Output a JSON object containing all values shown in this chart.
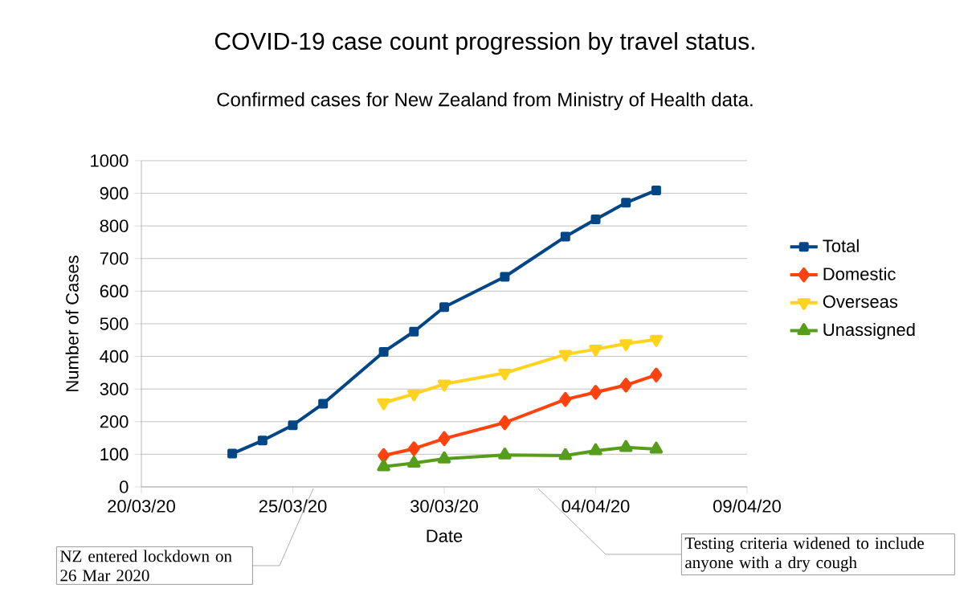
{
  "chart_data": {
    "type": "line",
    "title": "COVID-19 case count progression by travel status.",
    "subtitle": "Confirmed cases for New Zealand from Ministry of Health data.",
    "xlabel": "Date",
    "ylabel": "Number of Cases",
    "xlim": [
      "2020-03-20",
      "2020-04-09"
    ],
    "xticks": [
      {
        "value": "2020-03-20",
        "label": "20/03/20"
      },
      {
        "value": "2020-03-25",
        "label": "25/03/20"
      },
      {
        "value": "2020-03-30",
        "label": "30/03/20"
      },
      {
        "value": "2020-04-04",
        "label": "04/04/20"
      },
      {
        "value": "2020-04-09",
        "label": "09/04/20"
      }
    ],
    "ylim": [
      0,
      1000
    ],
    "yticks": [
      0,
      100,
      200,
      300,
      400,
      500,
      600,
      700,
      800,
      900,
      1000
    ],
    "grid": "y",
    "legend": "right",
    "series": [
      {
        "name": "Total",
        "color": "#004586",
        "marker": "square",
        "x": [
          "2020-03-23",
          "2020-03-24",
          "2020-03-25",
          "2020-03-26",
          "2020-03-28",
          "2020-03-29",
          "2020-03-30",
          "2020-04-01",
          "2020-04-03",
          "2020-04-04",
          "2020-04-05",
          "2020-04-06"
        ],
        "values": [
          102,
          142,
          189,
          255,
          414,
          476,
          551,
          644,
          767,
          820,
          871,
          909
        ]
      },
      {
        "name": "Domestic",
        "color": "#ff420e",
        "marker": "diamond",
        "x": [
          "2020-03-28",
          "2020-03-29",
          "2020-03-30",
          "2020-04-01",
          "2020-04-03",
          "2020-04-04",
          "2020-04-05",
          "2020-04-06"
        ],
        "values": [
          96,
          117,
          148,
          197,
          268,
          290,
          312,
          343
        ]
      },
      {
        "name": "Overseas",
        "color": "#ffd320",
        "marker": "triangle down",
        "x": [
          "2020-03-28",
          "2020-03-29",
          "2020-03-30",
          "2020-04-01",
          "2020-04-03",
          "2020-04-04",
          "2020-04-05",
          "2020-04-06"
        ],
        "values": [
          258,
          285,
          315,
          349,
          406,
          422,
          439,
          452
        ]
      },
      {
        "name": "Unassigned",
        "color": "#579d1c",
        "marker": "triangle",
        "x": [
          "2020-03-28",
          "2020-03-29",
          "2020-03-30",
          "2020-04-01",
          "2020-04-03",
          "2020-04-04",
          "2020-04-05",
          "2020-04-06"
        ],
        "values": [
          62,
          73,
          86,
          98,
          96,
          111,
          121,
          116
        ]
      }
    ],
    "annotations": [
      "NZ entered lockdown on 26 Mar 2020",
      "Testing criteria widened to include anyone with a dry cough"
    ]
  }
}
